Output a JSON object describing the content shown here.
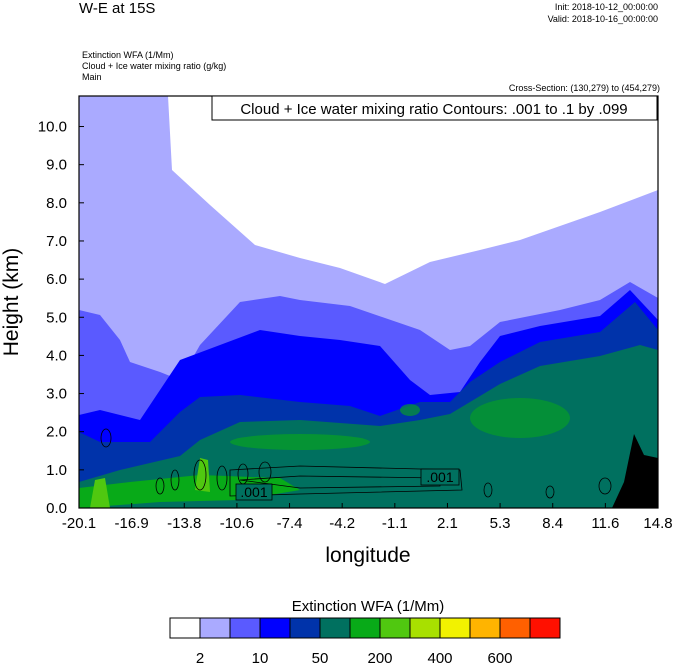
{
  "header": {
    "title": "W-E at 15S",
    "init": "Init: 2018-10-12_00:00:00",
    "valid": "Valid: 2018-10-16_00:00:00",
    "fields": [
      "Extinction WFA   (1/Mm)",
      "Cloud + Ice water mixing ratio    (g/kg)",
      "Main"
    ],
    "cross_section": "Cross-Section: (130,279) to (454,279)"
  },
  "chart_data": {
    "type": "heatmap",
    "title": "W-E at 15S",
    "xlabel": "longitude",
    "ylabel": "Height (km)",
    "xlim": [
      -20.1,
      14.8
    ],
    "ylim": [
      0,
      10.8
    ],
    "xticks": [
      "-20.1",
      "-16.9",
      "-13.8",
      "-10.6",
      "-7.4",
      "-4.2",
      "-1.1",
      "2.1",
      "5.3",
      "8.4",
      "11.6",
      "14.8"
    ],
    "yticks": [
      "0.0",
      "1.0",
      "2.0",
      "3.0",
      "4.0",
      "5.0",
      "6.0",
      "7.0",
      "8.0",
      "9.0",
      "10.0"
    ],
    "contour_label": "Cloud + Ice water mixing ratio Contours: .001 to .1 by .099",
    "contour_values": [
      ".001",
      ".001"
    ],
    "colorbar": {
      "title": "Extinction WFA  (1/Mm)",
      "colors": [
        "#ffffff",
        "#aaaaff",
        "#5a5aff",
        "#0000ff",
        "#0033aa",
        "#00705f",
        "#08aa18",
        "#50c810",
        "#a8e000",
        "#f2f200",
        "#ffb400",
        "#ff6000",
        "#ff1000"
      ],
      "labels": [
        "2",
        "10",
        "50",
        "200",
        "400",
        "600"
      ]
    }
  }
}
